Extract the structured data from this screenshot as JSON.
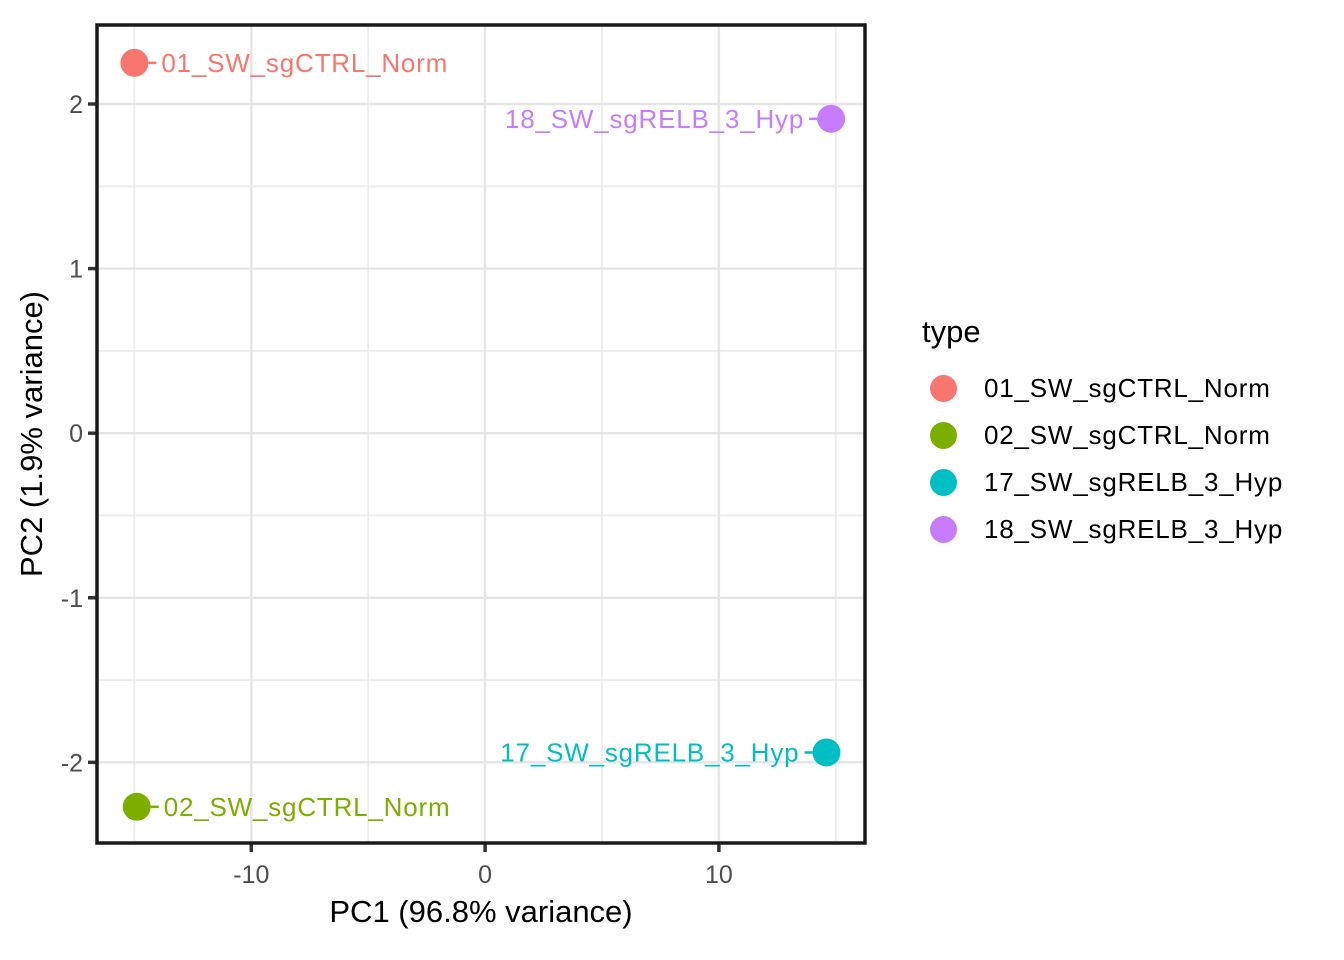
{
  "chart_data": {
    "type": "scatter",
    "title": "",
    "xlabel": "PC1 (96.8% variance)",
    "ylabel": "PC2 (1.9% variance)",
    "xlim": [
      -16.6,
      16.25
    ],
    "ylim": [
      -2.49,
      2.48
    ],
    "x_major_ticks": [
      -10,
      0,
      10
    ],
    "x_minor_ticks": [
      -15,
      -5,
      5,
      15
    ],
    "y_major_ticks": [
      -2,
      -1,
      0,
      1,
      2
    ],
    "y_minor_ticks": [
      -1.5,
      -0.5,
      0.5,
      1.5
    ],
    "grid": true,
    "legend_position": "right",
    "points": [
      {
        "name": "01_SW_sgCTRL_Norm",
        "x": -15.0,
        "y": 2.25,
        "color": "#F8766D",
        "label_side": "right"
      },
      {
        "name": "02_SW_sgCTRL_Norm",
        "x": -14.9,
        "y": -2.27,
        "color": "#7CAE00",
        "label_side": "right"
      },
      {
        "name": "17_SW_sgRELB_3_Hyp",
        "x": 14.6,
        "y": -1.94,
        "color": "#00BFC4",
        "label_side": "left"
      },
      {
        "name": "18_SW_sgRELB_3_Hyp",
        "x": 14.8,
        "y": 1.91,
        "color": "#C77CFF",
        "label_side": "left"
      }
    ]
  },
  "legend": {
    "title": "type",
    "items": [
      {
        "label": "01_SW_sgCTRL_Norm",
        "color": "#F8766D"
      },
      {
        "label": "02_SW_sgCTRL_Norm",
        "color": "#7CAE00"
      },
      {
        "label": "17_SW_sgRELB_3_Hyp",
        "color": "#00BFC4"
      },
      {
        "label": "18_SW_sgRELB_3_Hyp",
        "color": "#C77CFF"
      }
    ]
  },
  "colors": {
    "background": "#FFFFFF",
    "grid_major": "#E5E5E5",
    "grid_minor": "#ECECEC",
    "panel_border": "#1A1A1A",
    "tick": "#333333",
    "tick_label": "#4D4D4D",
    "axis_title": "#000000",
    "legend_text": "#000000"
  }
}
